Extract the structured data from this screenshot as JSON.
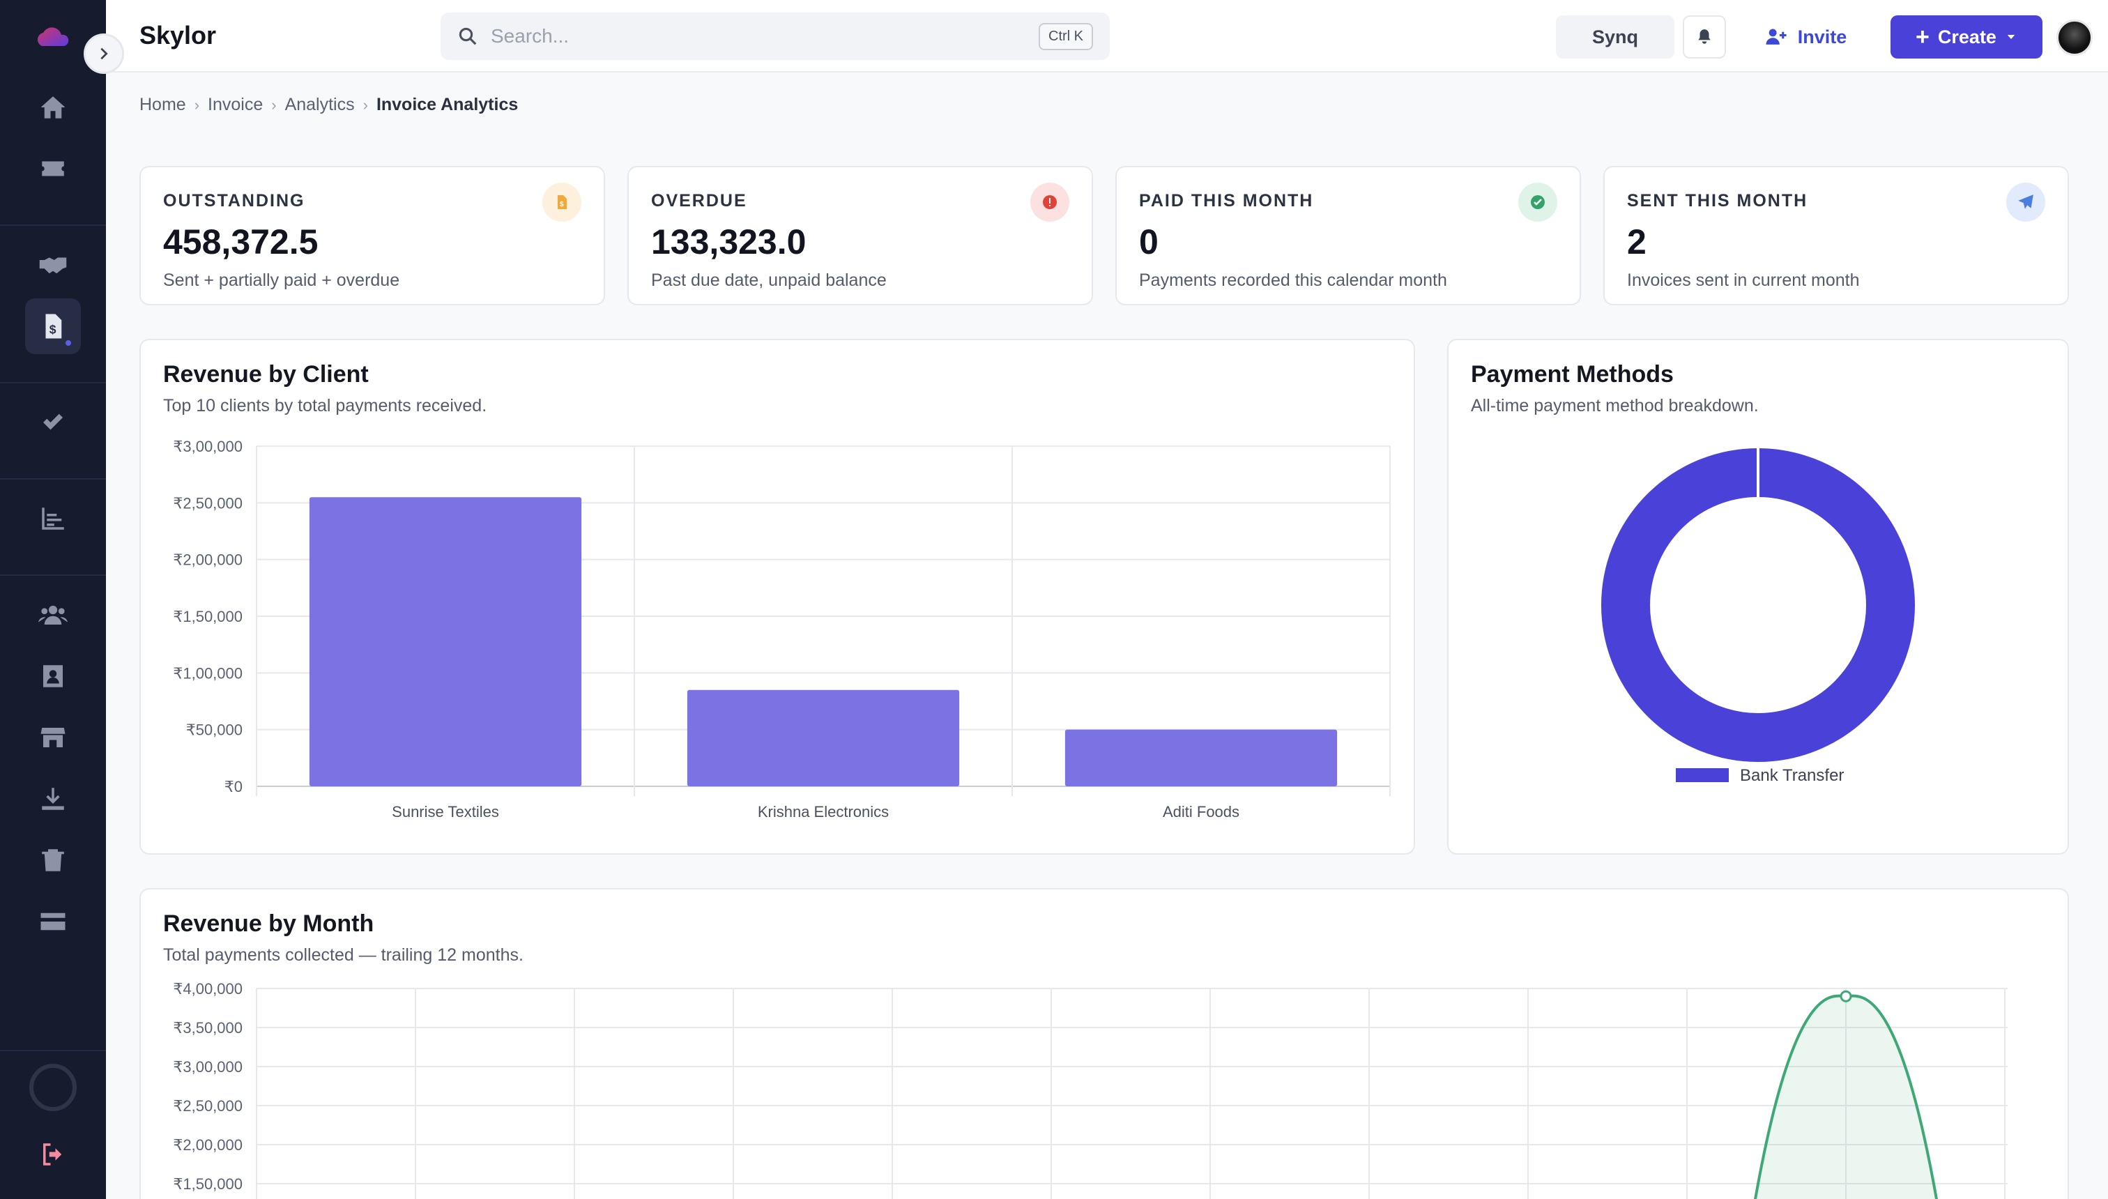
{
  "app": {
    "brand": "Skylor"
  },
  "search": {
    "placeholder": "Search...",
    "shortcut": "Ctrl K"
  },
  "topbar": {
    "synq_label": "Synq",
    "invite_label": "Invite",
    "create_label": "Create"
  },
  "breadcrumb": [
    "Home",
    "Invoice",
    "Analytics",
    "Invoice Analytics"
  ],
  "sidebar": {
    "items": [
      "home-icon",
      "ticket-icon",
      "handshake-icon",
      "invoice-icon",
      "check-icon",
      "bar-list-icon",
      "users-icon",
      "contact-card-icon",
      "store-icon",
      "download-icon",
      "trash-icon",
      "credit-card-icon",
      "loading-ring-icon",
      "logout-icon"
    ],
    "active": "invoice-icon"
  },
  "stats": [
    {
      "title": "OUTSTANDING",
      "value": "458,372.5",
      "sub": "Sent + partially paid + overdue",
      "icon": "invoice-dollar-icon",
      "icon_color": "#f2a93b",
      "icon_bg": "#fdf0dc"
    },
    {
      "title": "OVERDUE",
      "value": "133,323.0",
      "sub": "Past due date, unpaid balance",
      "icon": "alert-icon",
      "icon_color": "#e0433a",
      "icon_bg": "#fbe2e0"
    },
    {
      "title": "PAID THIS MONTH",
      "value": "0",
      "sub": "Payments recorded this calendar month",
      "icon": "check-circle-icon",
      "icon_color": "#34a26b",
      "icon_bg": "#dff3e8"
    },
    {
      "title": "SENT THIS MONTH",
      "value": "2",
      "sub": "Invoices sent in current month",
      "icon": "paper-plane-icon",
      "icon_color": "#4a7fe0",
      "icon_bg": "#e2ebfb"
    }
  ],
  "revenue_by_client": {
    "title": "Revenue by Client",
    "subtitle": "Top 10 clients by total payments received."
  },
  "payment_methods": {
    "title": "Payment Methods",
    "subtitle": "All-time payment method breakdown."
  },
  "revenue_by_month": {
    "title": "Revenue by Month",
    "subtitle": "Total payments collected — trailing 12 months."
  },
  "colors": {
    "accent": "#4a42d8",
    "bar": "#7b73e4",
    "line": "#3fa877",
    "sidebar": "#161b2e"
  },
  "chart_data": [
    {
      "type": "bar",
      "title": "Revenue by Client",
      "categories": [
        "Sunrise Textiles",
        "Krishna Electronics",
        "Aditi Foods"
      ],
      "values": [
        255000,
        85000,
        50000
      ],
      "ylim": [
        0,
        300000
      ],
      "yticks": [
        "₹0",
        "₹50,000",
        "₹1,00,000",
        "₹1,50,000",
        "₹2,00,000",
        "₹2,50,000",
        "₹3,00,000"
      ],
      "grid": true
    },
    {
      "type": "pie",
      "title": "Payment Methods",
      "labels": [
        "Bank Transfer"
      ],
      "values": [
        100
      ],
      "legend": "bottom"
    },
    {
      "type": "line",
      "title": "Revenue by Month",
      "values_visible": [
        {
          "index": 10,
          "y": 390000
        }
      ],
      "ylim": [
        150000,
        400000
      ],
      "yticks": [
        "₹1,50,000",
        "₹2,00,000",
        "₹2,50,000",
        "₹3,00,000",
        "₹3,50,000",
        "₹4,00,000"
      ],
      "grid": true
    }
  ]
}
